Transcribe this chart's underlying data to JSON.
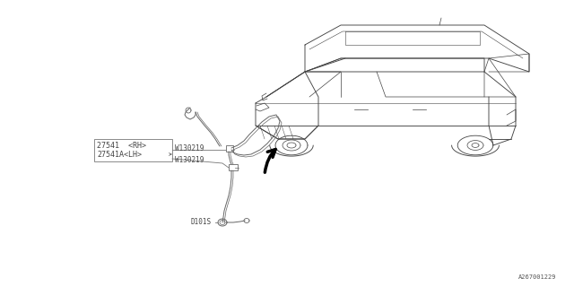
{
  "bg_color": "#ffffff",
  "part_number_bottom": "A267001229",
  "labels": {
    "rh": "27541  <RH>",
    "lh": "27541A<LH>",
    "w1": "W130219",
    "w2": "W130219",
    "d": "D101S"
  },
  "line_color": "#444444",
  "font_size": 6.0,
  "font_size_small": 5.5
}
